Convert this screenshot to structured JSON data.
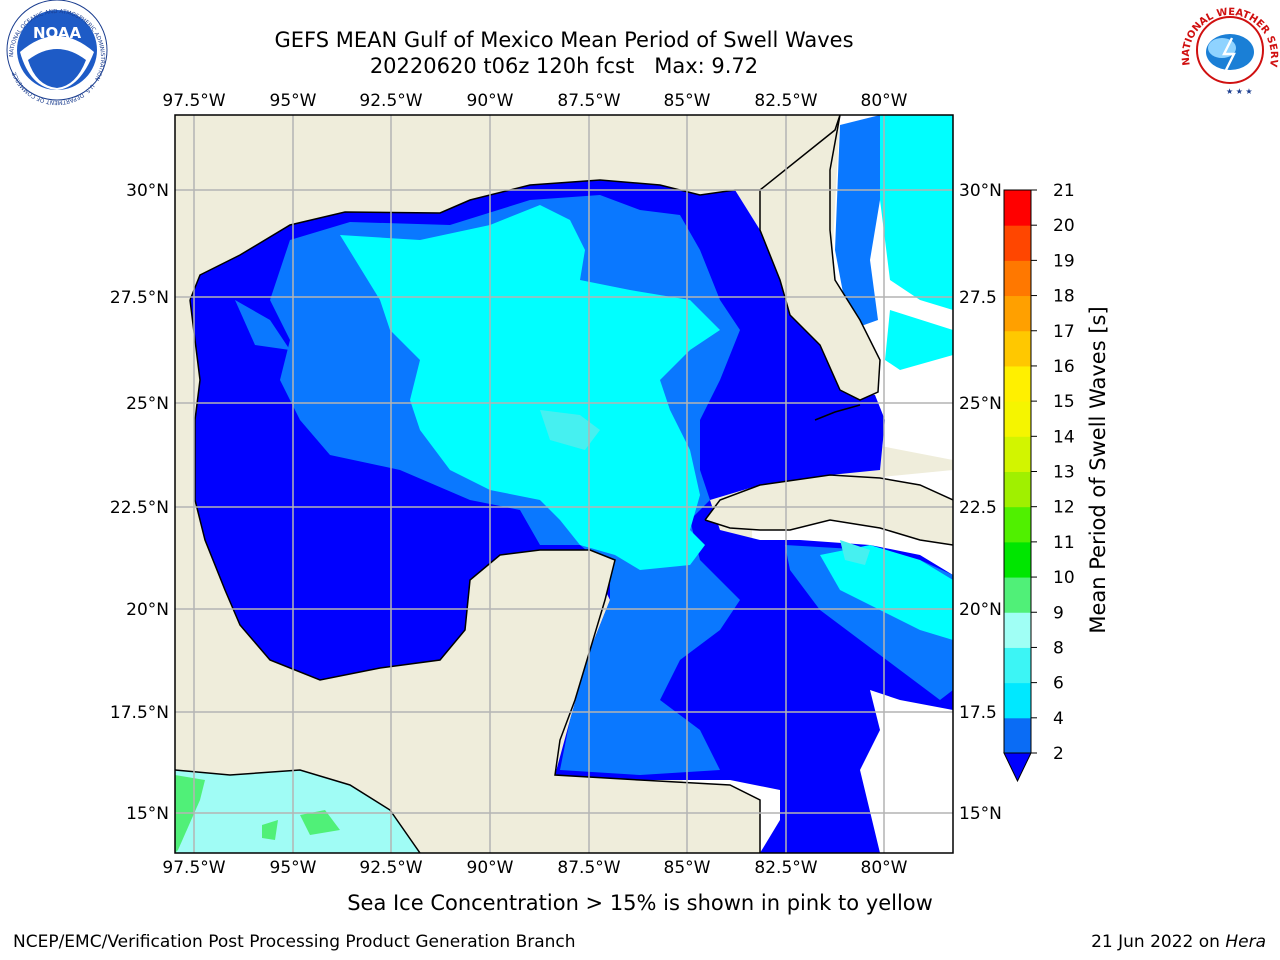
{
  "title": {
    "line1": "GEFS MEAN Gulf of Mexico Mean Period of Swell Waves",
    "line2": "20220620 t06z 120h fcst   Max: 9.72"
  },
  "map": {
    "top_ticks": [
      "97.5°W",
      "95°W",
      "92.5°W",
      "90°W",
      "87.5°W",
      "85°W",
      "82.5°W",
      "80°W"
    ],
    "bottom_ticks": [
      "97.5°W",
      "95°W",
      "92.5°W",
      "90°W",
      "87.5°W",
      "85°W",
      "82.5°W",
      "80°W"
    ],
    "left_ticks": [
      "30°N",
      "27.5°N",
      "25°N",
      "22.5°N",
      "20°N",
      "17.5°N",
      "15°N"
    ],
    "right_ticks": [
      "30°N",
      "27.5",
      "25°N",
      "22.5",
      "20°N",
      "17.5",
      "15°N"
    ],
    "land_color": "#efeddb",
    "grid_color": "#b4b4b4"
  },
  "colorbar": {
    "label": "Mean Period of Swell Waves [s]",
    "ticks": [
      "2",
      "4",
      "6",
      "8",
      "9",
      "10",
      "11",
      "12",
      "13",
      "14",
      "15",
      "16",
      "17",
      "18",
      "19",
      "20",
      "21"
    ],
    "colors": [
      "#0a6cf5",
      "#00e8ff",
      "#3cf5f5",
      "#a0fff5",
      "#50f078",
      "#00e600",
      "#50f000",
      "#a0f000",
      "#d2f500",
      "#f5f500",
      "#fff000",
      "#ffc800",
      "#ffa000",
      "#ff7800",
      "#ff4600",
      "#ff0000"
    ],
    "extend_color": "#0000ff"
  },
  "caption": "Sea Ice Concentration > 15% is shown in pink to yellow",
  "footer": {
    "left": "NCEP/EMC/Verification Post Processing Product Generation Branch",
    "right_prefix": "21 Jun 2022 on ",
    "right_host": "Hera"
  },
  "logos": {
    "noaa": "NOAA",
    "noaa_ring": "NATIONAL OCEANIC AND ATMOSPHERIC ADMINISTRATION · U.S. DEPARTMENT OF COMMERCE",
    "nws": "NATIONAL WEATHER SERVICE"
  },
  "field_colors": {
    "deep_blue": "#0000ff",
    "mid_blue": "#0a78ff",
    "cyan": "#00ffff",
    "light_cyan": "#46f0f0",
    "pale": "#a0fcf5",
    "green": "#50f078"
  }
}
